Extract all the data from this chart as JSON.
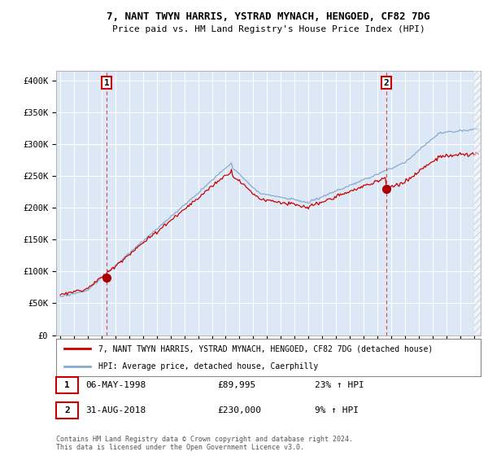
{
  "title": "7, NANT TWYN HARRIS, YSTRAD MYNACH, HENGOED, CF82 7DG",
  "subtitle": "Price paid vs. HM Land Registry's House Price Index (HPI)",
  "ylabel_ticks": [
    "£0",
    "£50K",
    "£100K",
    "£150K",
    "£200K",
    "£250K",
    "£300K",
    "£350K",
    "£400K"
  ],
  "ytick_values": [
    0,
    50000,
    100000,
    150000,
    200000,
    250000,
    300000,
    350000,
    400000
  ],
  "ylim": [
    0,
    415000
  ],
  "xlim_start": 1994.7,
  "xlim_end": 2025.5,
  "line1_color": "#cc0000",
  "line2_color": "#88aacc",
  "plot_bg_color": "#dce8f5",
  "marker1_color": "#aa0000",
  "marker2_color": "#aa0000",
  "sale1_x": 1998.37,
  "sale1_y": 89995,
  "sale2_x": 2018.67,
  "sale2_y": 230000,
  "label1": "1",
  "label2": "2",
  "label_box_color": "#cc0000",
  "legend_line1": "7, NANT TWYN HARRIS, YSTRAD MYNACH, HENGOED, CF82 7DG (detached house)",
  "legend_line2": "HPI: Average price, detached house, Caerphilly",
  "table_row1_num": "1",
  "table_row1_date": "06-MAY-1998",
  "table_row1_price": "£89,995",
  "table_row1_hpi": "23% ↑ HPI",
  "table_row2_num": "2",
  "table_row2_date": "31-AUG-2018",
  "table_row2_price": "£230,000",
  "table_row2_hpi": "9% ↑ HPI",
  "footer": "Contains HM Land Registry data © Crown copyright and database right 2024.\nThis data is licensed under the Open Government Licence v3.0.",
  "vline1_color": "#dd4444",
  "vline2_color": "#dd4444",
  "background_color": "#ffffff",
  "grid_color": "#ffffff",
  "hatch_color": "#bbbbbb"
}
